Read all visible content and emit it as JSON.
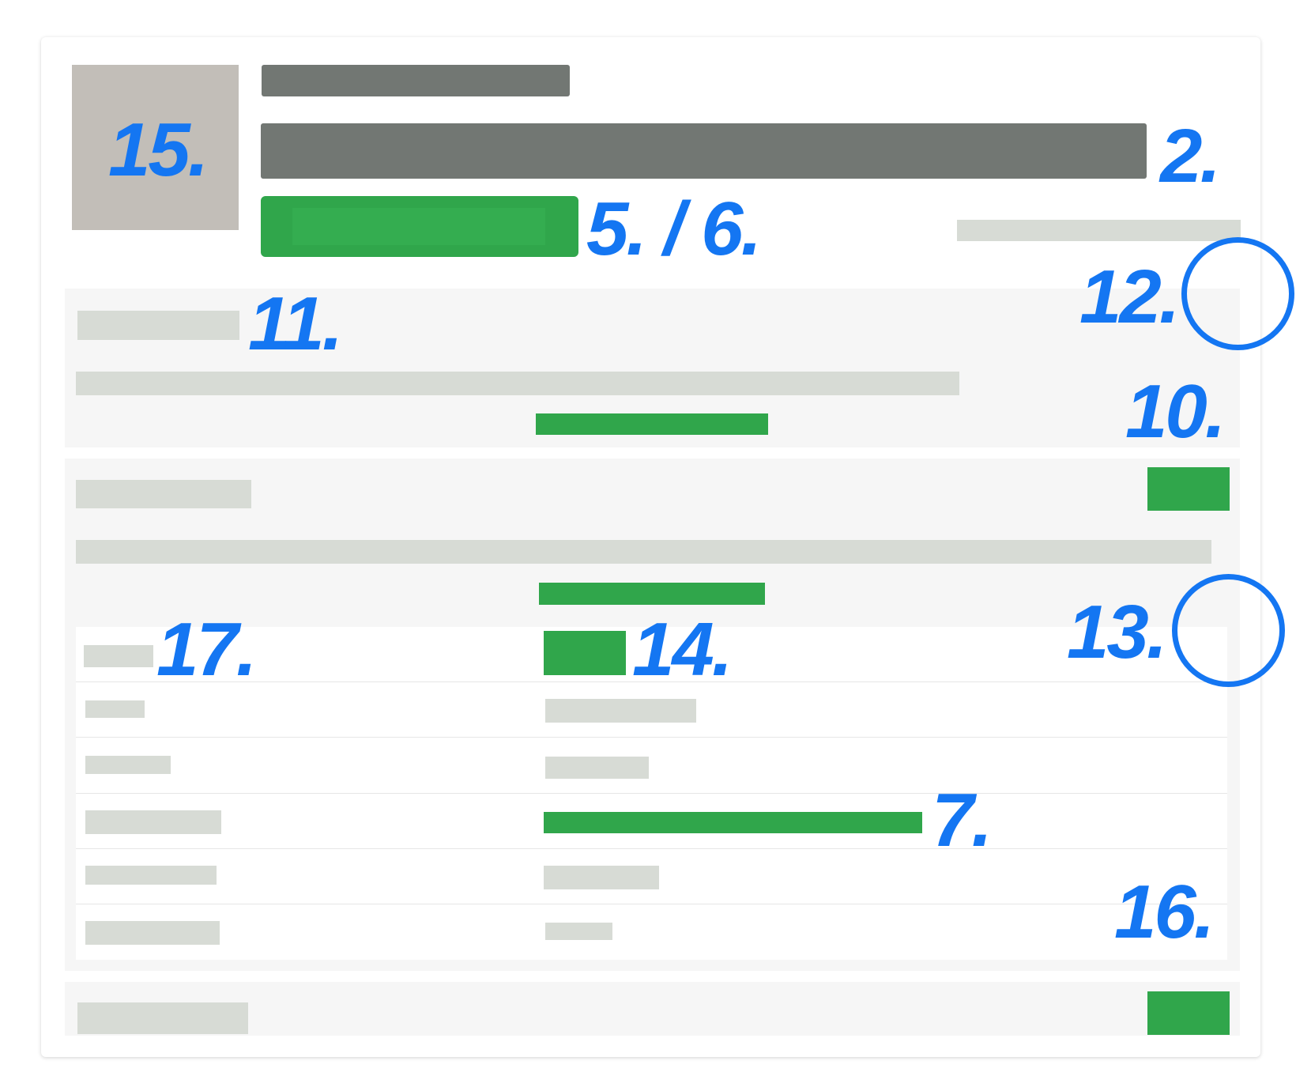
{
  "callouts": {
    "thumbnail": "15.",
    "headline": "2.",
    "primary_action": "5. / 6.",
    "section_header": "11.",
    "info_toggle": "12.",
    "section_bar": "10.",
    "table_toggle": "13.",
    "table_label": "17.",
    "table_value": "14.",
    "progress_bar": "7.",
    "table_footer": "16."
  },
  "colors": {
    "accent_green": "#30a64b",
    "callout_blue": "#1476f2",
    "placeholder_gray": "#d7dbd5",
    "heading_gray": "#727773"
  }
}
